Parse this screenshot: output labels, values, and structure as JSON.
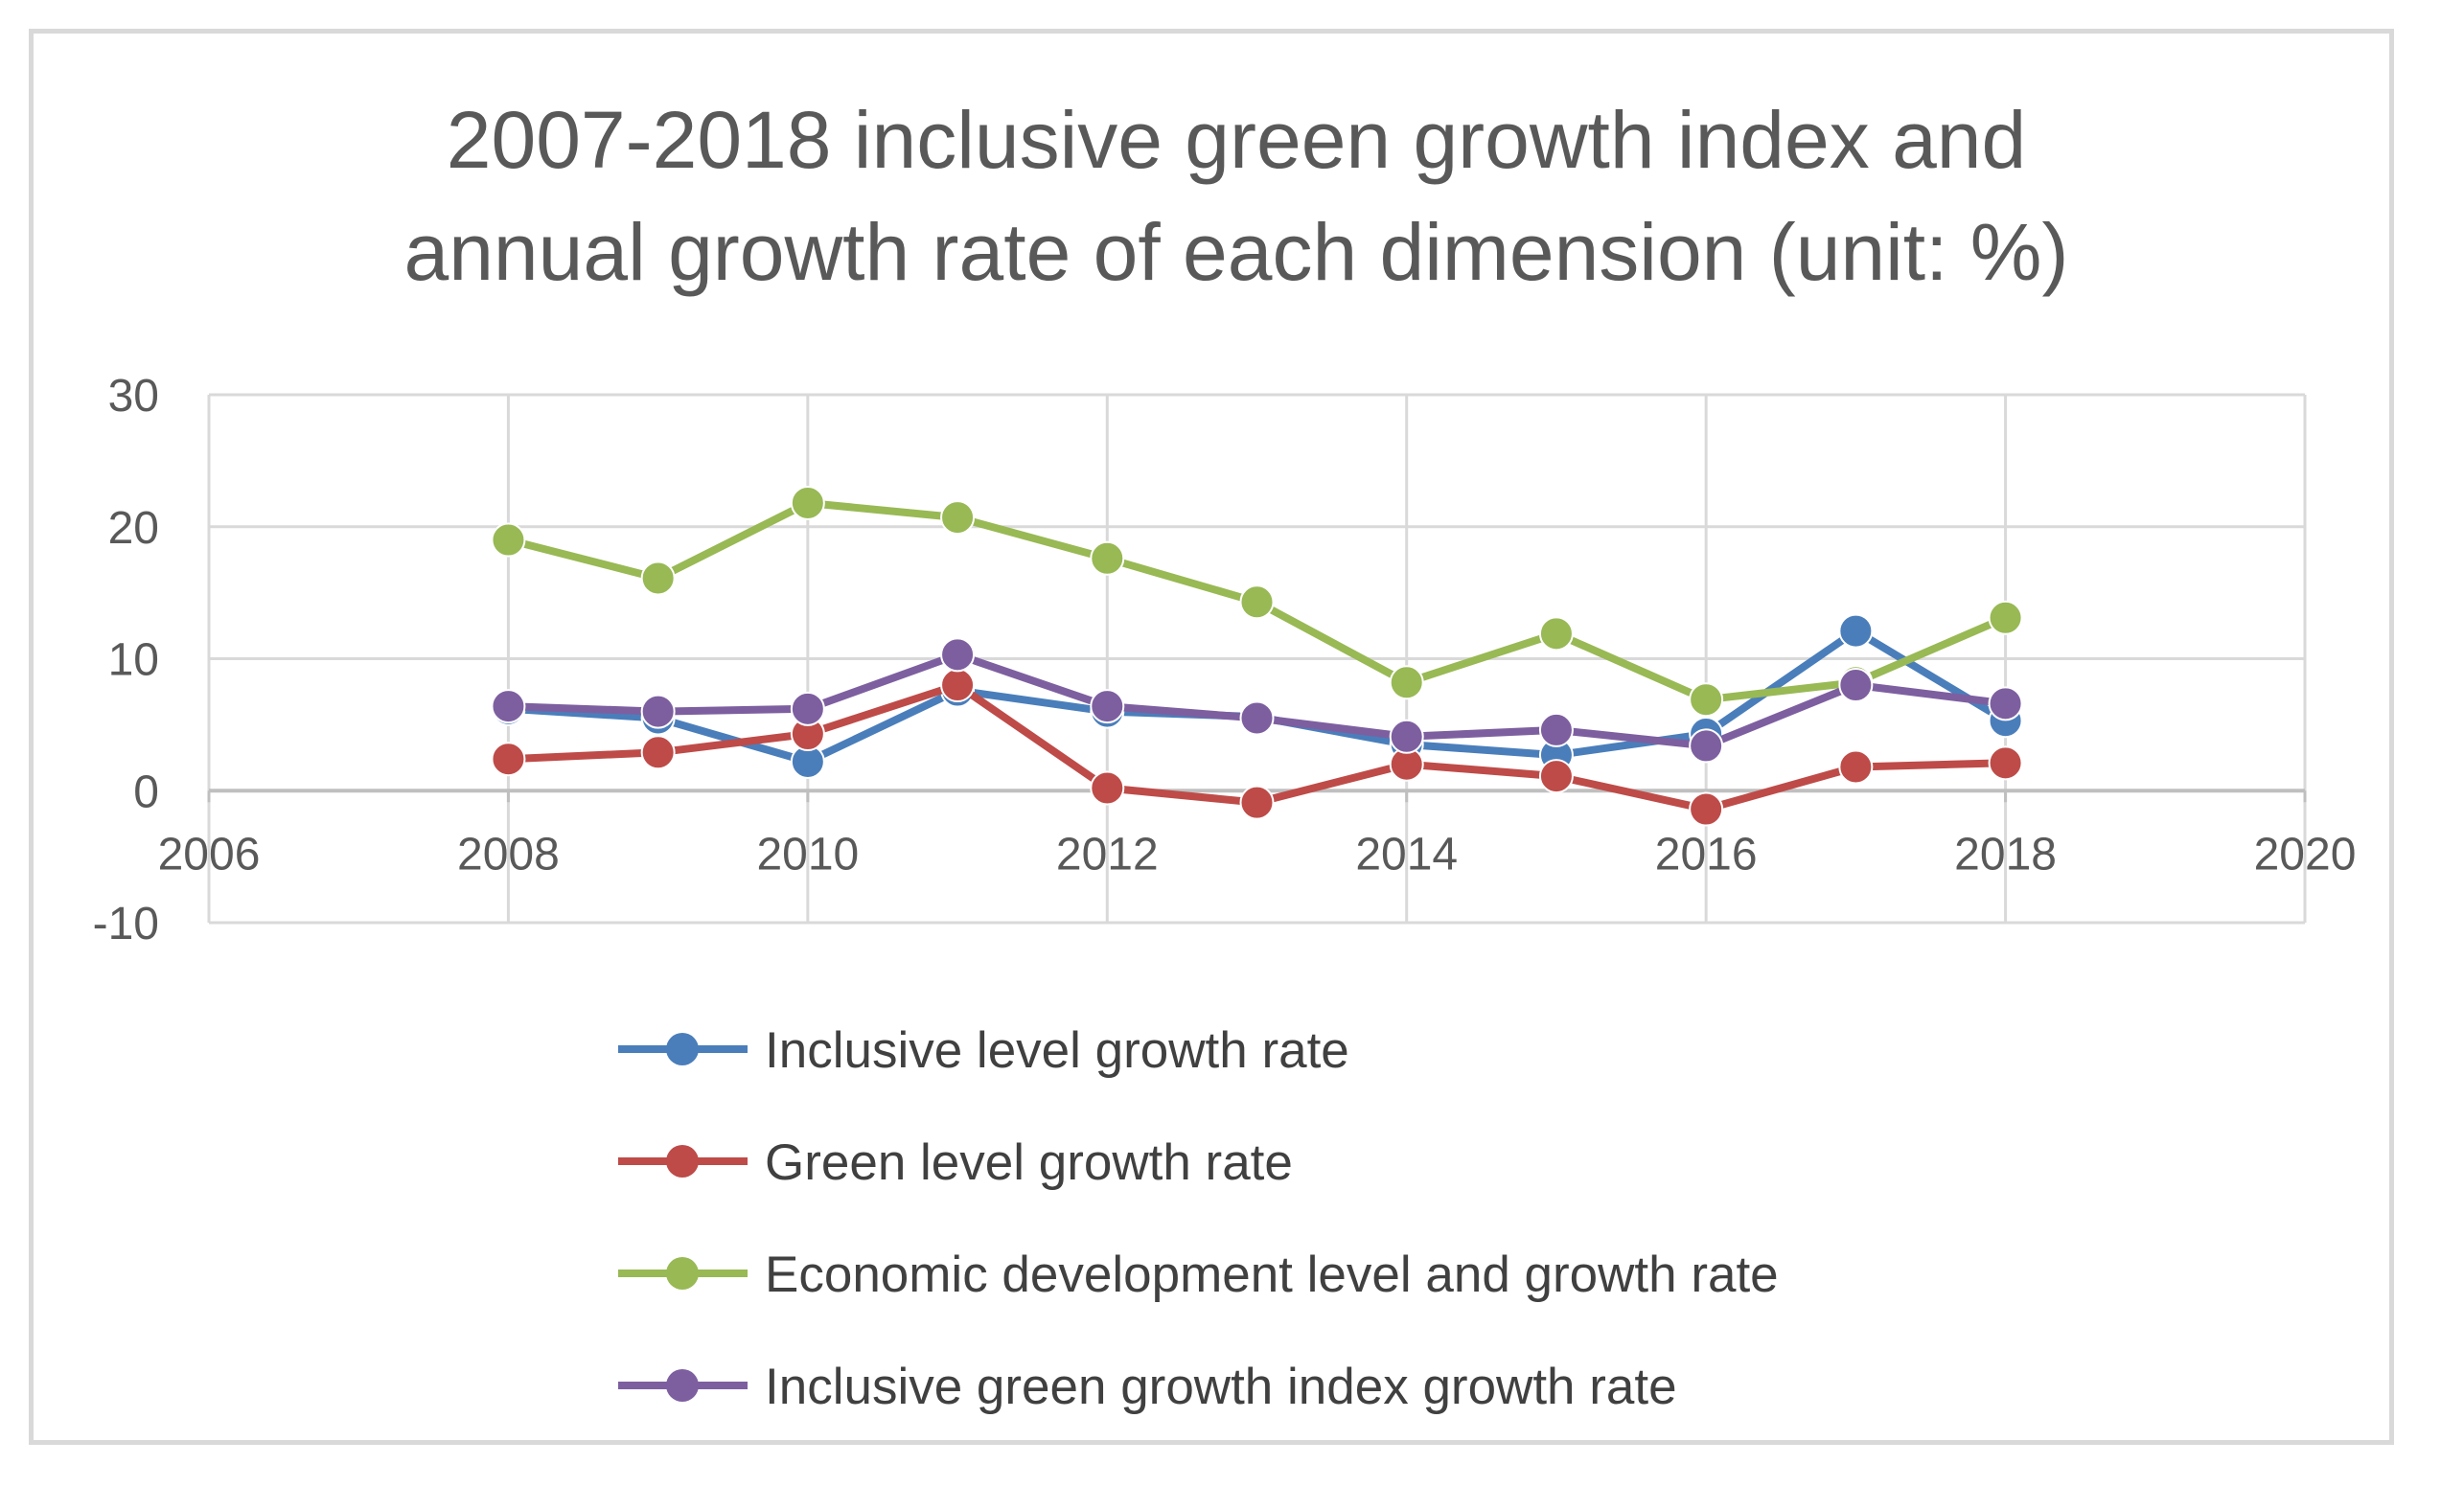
{
  "chart_data": {
    "type": "line",
    "title": "2007-2018 inclusive green growth index and annual growth rate of each dimension (unit: %)",
    "title_lines": [
      "2007-2018 inclusive green growth index and",
      "annual growth rate of each dimension (unit: %)"
    ],
    "xlabel": "",
    "ylabel": "",
    "xlim": [
      2006,
      2020
    ],
    "ylim": [
      -10,
      30
    ],
    "x_ticks": [
      2006,
      2008,
      2010,
      2012,
      2014,
      2016,
      2018,
      2020
    ],
    "y_ticks": [
      30,
      20,
      10,
      0,
      -10
    ],
    "grid": true,
    "legend_position": "bottom",
    "x": [
      2008,
      2009,
      2010,
      2011,
      2012,
      2013,
      2014,
      2015,
      2016,
      2017,
      2018
    ],
    "series": [
      {
        "name": "Inclusive level growth rate",
        "color": "#4a7ebb",
        "values": [
          6.2,
          5.5,
          2.2,
          7.6,
          6.0,
          5.6,
          3.5,
          2.7,
          4.3,
          12.1,
          5.3
        ]
      },
      {
        "name": "Green level growth rate",
        "color": "#be4b48",
        "values": [
          2.4,
          2.9,
          4.3,
          8.0,
          0.2,
          -0.9,
          2.0,
          1.1,
          -1.4,
          1.8,
          2.1
        ]
      },
      {
        "name": "Economic development level and growth rate",
        "color": "#98b954",
        "values": [
          19.0,
          16.1,
          21.8,
          20.7,
          17.6,
          14.3,
          8.2,
          11.9,
          6.9,
          8.2,
          13.1
        ]
      },
      {
        "name": "Inclusive green growth index growth rate",
        "color": "#7d5fa0",
        "values": [
          6.4,
          6.0,
          6.2,
          10.3,
          6.4,
          5.5,
          4.1,
          4.6,
          3.4,
          8.0,
          6.6
        ]
      }
    ]
  }
}
